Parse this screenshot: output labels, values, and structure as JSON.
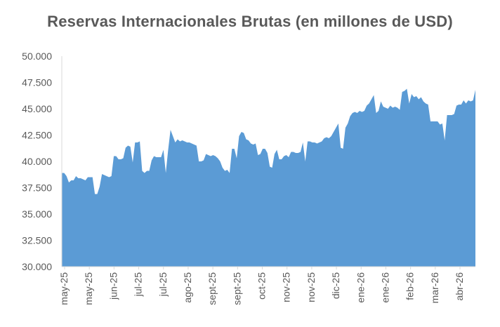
{
  "chart_data": {
    "type": "area",
    "title": "Reservas Internacionales Brutas (en millones de USD)",
    "xlabel": "",
    "ylabel": "",
    "ylim": [
      30000,
      50000
    ],
    "y_ticks": [
      30000,
      32500,
      35000,
      37500,
      40000,
      42500,
      45000,
      47500,
      50000
    ],
    "y_tick_labels": [
      "30.000",
      "32.500",
      "35.000",
      "37.500",
      "40.000",
      "42.500",
      "45.000",
      "47.500",
      "50.000"
    ],
    "x_tick_labels": [
      "may-25",
      "may-25",
      "jun-25",
      "jul-25",
      "jul-25",
      "ago-25",
      "sept-25",
      "sept-25",
      "oct-25",
      "nov-25",
      "nov-25",
      "dic-25",
      "ene-26",
      "ene-26",
      "feb-26",
      "mar-26",
      "abr-26"
    ],
    "grid": false,
    "legend": "none",
    "color": "#5b9bd5",
    "values": [
      38900,
      38900,
      38600,
      38000,
      38200,
      38200,
      38600,
      38400,
      38400,
      38300,
      38200,
      38500,
      38500,
      38500,
      36900,
      36900,
      37600,
      38800,
      38700,
      38600,
      38500,
      38600,
      40500,
      40500,
      40200,
      40200,
      40300,
      41300,
      41500,
      41400,
      39900,
      41800,
      41800,
      41900,
      39100,
      38900,
      39100,
      39100,
      40100,
      40500,
      40400,
      40400,
      40400,
      41100,
      38900,
      41100,
      43000,
      42400,
      41800,
      42100,
      41900,
      42000,
      41900,
      41800,
      41800,
      41700,
      41600,
      41500,
      40000,
      40000,
      40100,
      40700,
      40600,
      40500,
      40600,
      40500,
      40300,
      40000,
      39400,
      39100,
      39200,
      38900,
      41200,
      41200,
      40300,
      42400,
      42800,
      42700,
      42100,
      42000,
      41700,
      41600,
      41700,
      40600,
      40700,
      41200,
      41200,
      40800,
      39500,
      39400,
      40700,
      41100,
      40200,
      40200,
      40500,
      40600,
      40400,
      40900,
      40900,
      40800,
      40800,
      40900,
      41800,
      40000,
      41900,
      41900,
      41800,
      41800,
      41700,
      41800,
      41900,
      42200,
      42300,
      42200,
      42400,
      42800,
      43200,
      43600,
      41300,
      41200,
      43200,
      43600,
      44300,
      44600,
      44700,
      44600,
      44800,
      44700,
      44800,
      45300,
      45500,
      45900,
      46300,
      44600,
      44800,
      45700,
      45200,
      45100,
      45000,
      45300,
      45100,
      45200,
      45100,
      44900,
      46600,
      46700,
      46900,
      45500,
      46400,
      46100,
      46200,
      45900,
      46100,
      45700,
      45500,
      45400,
      43800,
      43800,
      43800,
      43800,
      43500,
      43600,
      42000,
      44400,
      44400,
      44400,
      44500,
      45300,
      45400,
      45400,
      45800,
      45500,
      45800,
      45700,
      45800,
      46800
    ]
  }
}
